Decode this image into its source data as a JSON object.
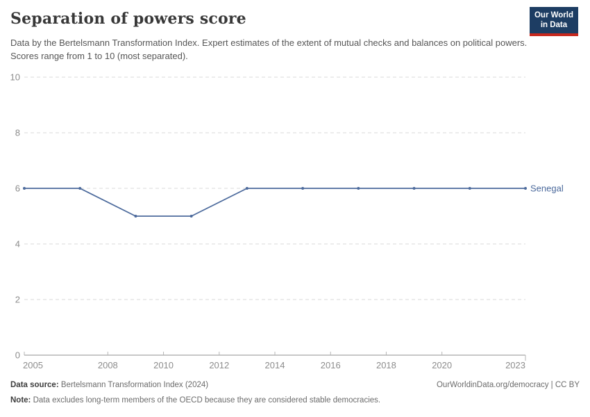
{
  "header": {
    "title": "Separation of powers score",
    "subtitle": "Data by the Bertelsmann Transformation Index. Expert estimates of the extent of mutual checks and balances on political powers. Scores range from 1 to 10 (most separated)."
  },
  "logo": {
    "line1": "Our World",
    "line2": "in Data"
  },
  "chart_data": {
    "type": "line",
    "title": "Separation of powers score",
    "x": [
      2005,
      2007,
      2009,
      2011,
      2013,
      2015,
      2017,
      2019,
      2021,
      2023
    ],
    "series": [
      {
        "name": "Senegal",
        "color": "#4c6a9c",
        "values": [
          6,
          6,
          5,
          5,
          6,
          6,
          6,
          6,
          6,
          6
        ]
      }
    ],
    "x_ticks": [
      2005,
      2008,
      2010,
      2012,
      2014,
      2016,
      2018,
      2020,
      2023
    ],
    "y_ticks": [
      0,
      2,
      4,
      6,
      8,
      10
    ],
    "xlim": [
      2005,
      2023
    ],
    "ylim": [
      0,
      10
    ],
    "grid": "horizontal-dashed",
    "legend_position": "end-of-line"
  },
  "footer": {
    "source_label": "Data source:",
    "source_text": "Bertelsmann Transformation Index (2024)",
    "right_text": "OurWorldinData.org/democracy | CC BY",
    "note_label": "Note:",
    "note_text": "Data excludes long-term members of the OECD because they are considered stable democracies."
  },
  "colors": {
    "line": "#4c6a9c",
    "grid": "#d9d9d9",
    "axis": "#8f8f8f",
    "tick": "#b5b5b5",
    "tick_label": "#8c8c8c"
  }
}
